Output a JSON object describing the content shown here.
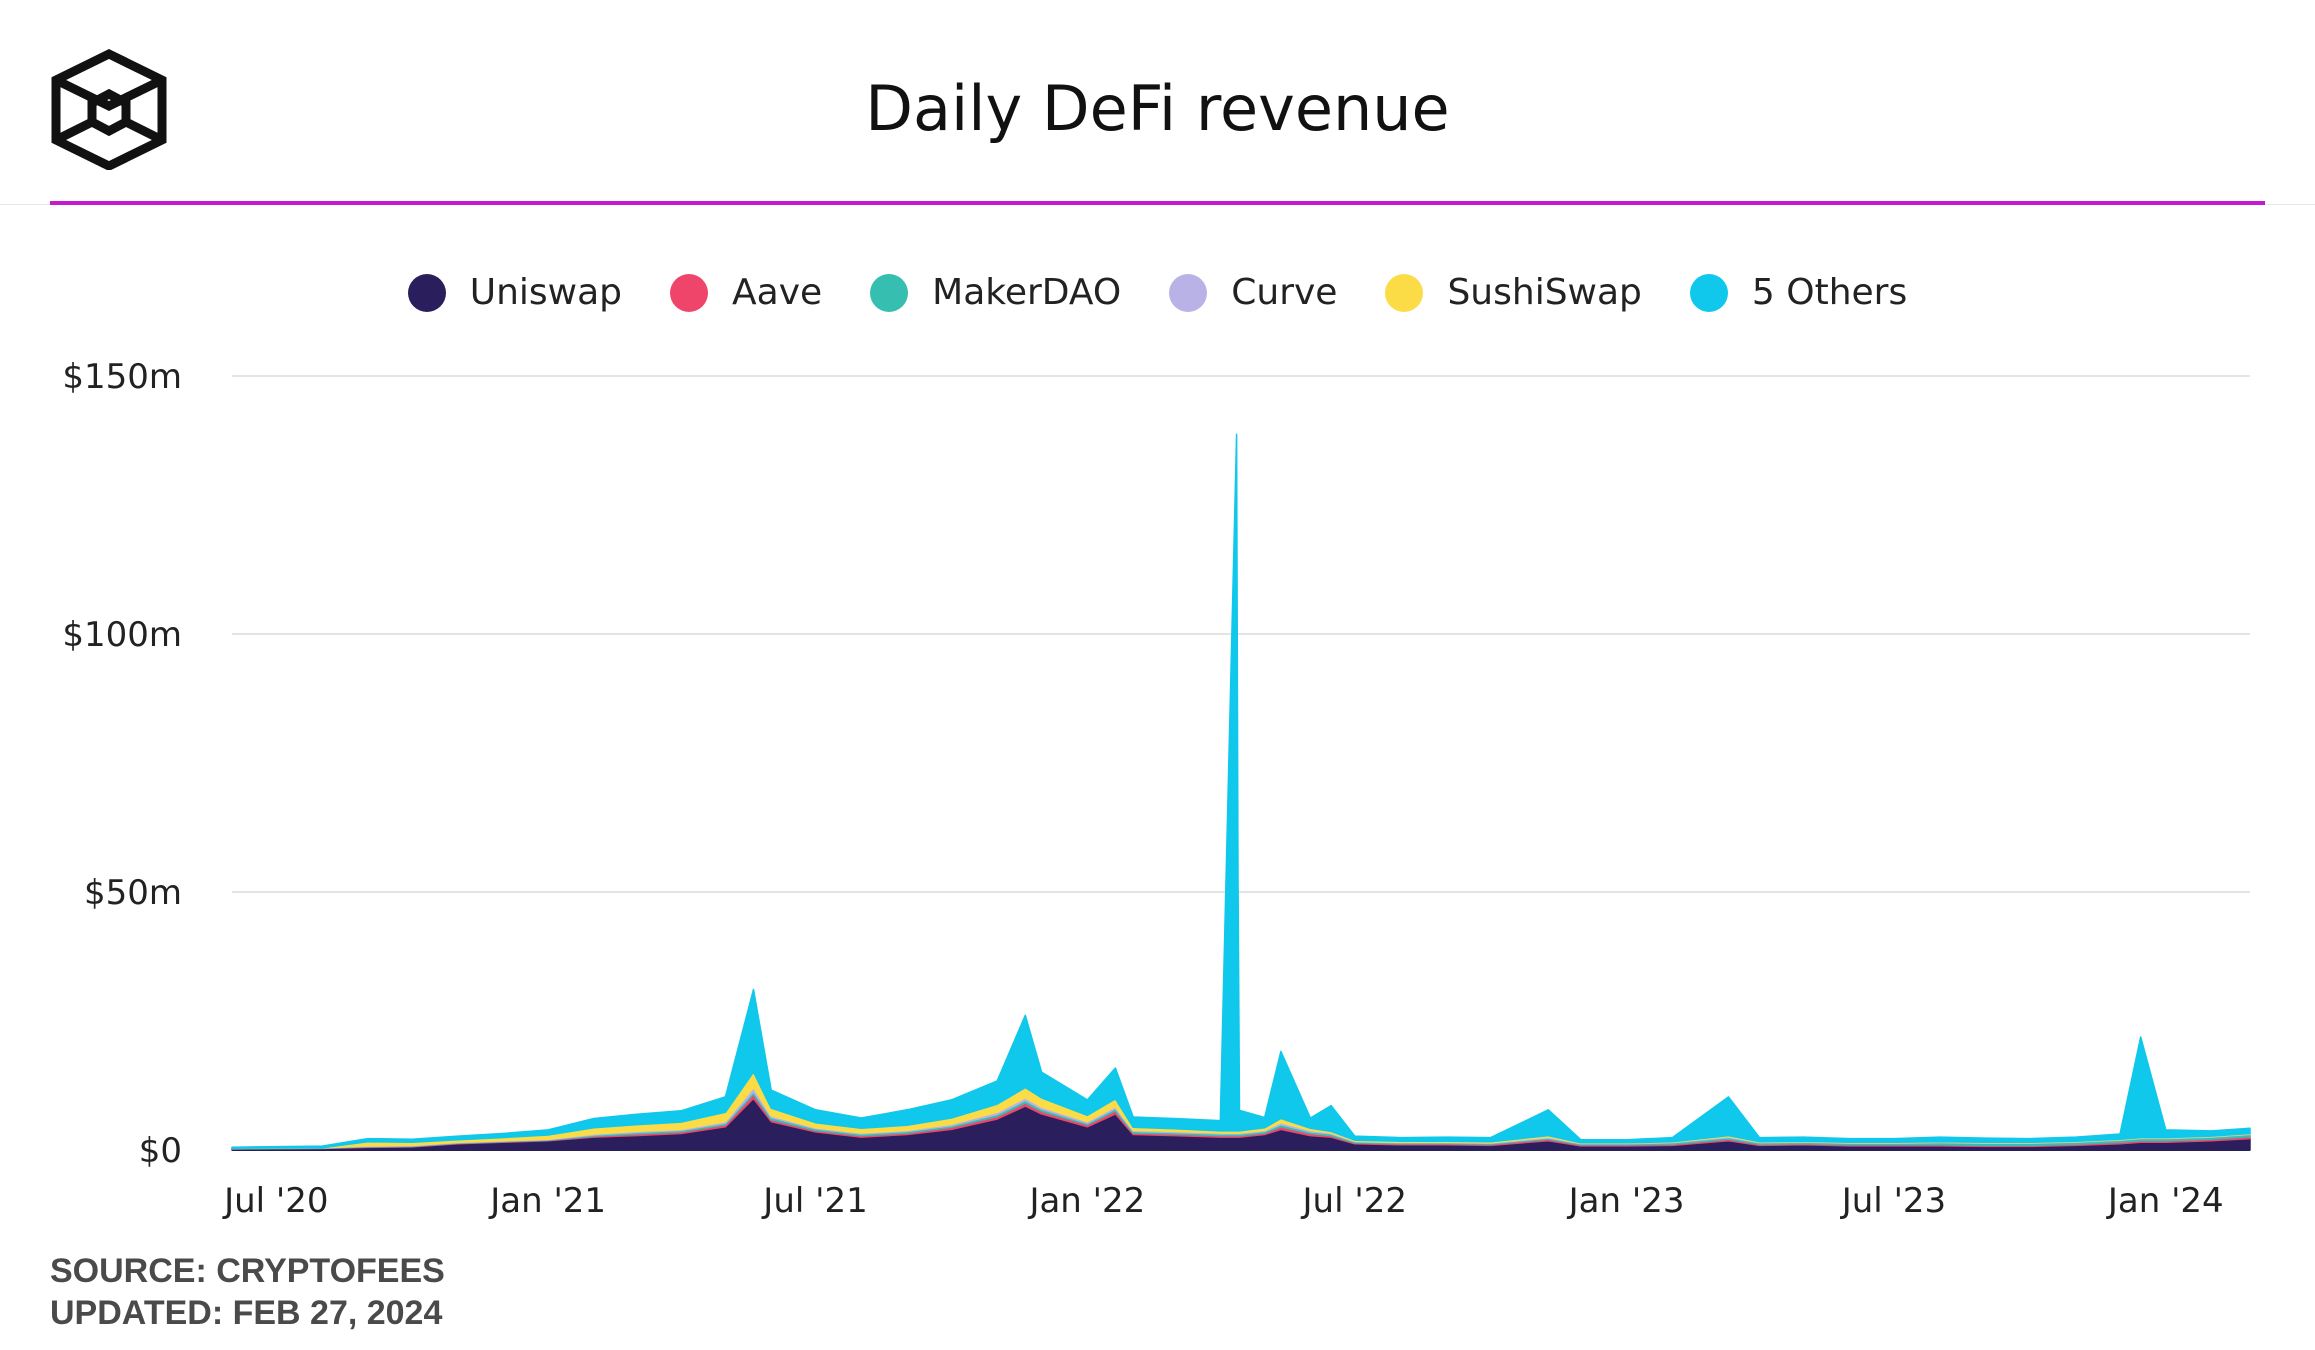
{
  "header": {
    "title": "Daily DeFi revenue",
    "logo_icon": "cube-logo-icon"
  },
  "legend": [
    {
      "label": "Uniswap",
      "color": "#2a1f5c"
    },
    {
      "label": "Aave",
      "color": "#f0456b"
    },
    {
      "label": "MakerDAO",
      "color": "#36bfb0"
    },
    {
      "label": "Curve",
      "color": "#b9b2e6"
    },
    {
      "label": "SushiSwap",
      "color": "#fbdc47"
    },
    {
      "label": "5 Others",
      "color": "#0fc8ec"
    }
  ],
  "footer": {
    "source": "SOURCE: CRYPTOFEES",
    "updated": "UPDATED: FEB 27, 2024"
  },
  "chart_data": {
    "type": "area",
    "stacked": true,
    "y_ticks": [
      "$0",
      "$50m",
      "$100m",
      "$150m"
    ],
    "y_tick_values": [
      0,
      50,
      100,
      150
    ],
    "ylim": [
      0,
      150
    ],
    "y_unit": "$m",
    "x_ticks": [
      "Jul '20",
      "Jan '21",
      "Jul '21",
      "Jan '22",
      "Jul '22",
      "Jan '23",
      "Jul '23",
      "Jan '24"
    ],
    "x_tick_dates": [
      "2020-07-01",
      "2021-01-01",
      "2021-07-01",
      "2022-01-01",
      "2022-07-01",
      "2023-01-01",
      "2023-07-01",
      "2024-01-01"
    ],
    "x_range": [
      "2020-06-01",
      "2024-02-27"
    ],
    "grid": true,
    "legend_position": "top",
    "x": [
      "2020-06-01",
      "2020-08-01",
      "2020-09-01",
      "2020-10-01",
      "2020-11-01",
      "2020-12-01",
      "2021-01-01",
      "2021-02-01",
      "2021-03-01",
      "2021-04-01",
      "2021-05-01",
      "2021-05-20",
      "2021-06-01",
      "2021-07-01",
      "2021-08-01",
      "2021-09-01",
      "2021-10-01",
      "2021-11-01",
      "2021-11-20",
      "2021-12-01",
      "2022-01-01",
      "2022-01-20",
      "2022-02-01",
      "2022-03-01",
      "2022-04-01",
      "2022-04-12",
      "2022-04-13",
      "2022-04-14",
      "2022-05-01",
      "2022-05-12",
      "2022-06-01",
      "2022-06-15",
      "2022-07-01",
      "2022-08-01",
      "2022-09-01",
      "2022-10-01",
      "2022-11-09",
      "2022-12-01",
      "2023-01-01",
      "2023-02-01",
      "2023-03-11",
      "2023-04-01",
      "2023-05-01",
      "2023-06-01",
      "2023-07-01",
      "2023-08-01",
      "2023-09-01",
      "2023-10-01",
      "2023-11-01",
      "2023-12-01",
      "2023-12-15",
      "2024-01-01",
      "2024-02-01",
      "2024-02-27"
    ],
    "series": [
      {
        "name": "Uniswap",
        "values": [
          0.2,
          0.3,
          0.5,
          0.6,
          1.2,
          1.5,
          1.8,
          2.5,
          2.8,
          3.2,
          4.5,
          10.0,
          5.5,
          3.5,
          2.5,
          3.0,
          4.0,
          6.0,
          8.5,
          7.0,
          4.5,
          7.0,
          3.0,
          2.8,
          2.5,
          2.5,
          2.5,
          2.5,
          3.0,
          4.0,
          2.8,
          2.5,
          1.2,
          1.0,
          1.0,
          0.9,
          1.8,
          0.8,
          0.8,
          0.9,
          1.8,
          0.9,
          1.0,
          0.8,
          0.8,
          0.8,
          0.7,
          0.7,
          0.9,
          1.2,
          1.5,
          1.5,
          1.8,
          2.2
        ]
      },
      {
        "name": "Aave",
        "values": [
          0.05,
          0.05,
          0.1,
          0.1,
          0.1,
          0.1,
          0.1,
          0.2,
          0.3,
          0.3,
          0.4,
          0.8,
          0.4,
          0.3,
          0.3,
          0.3,
          0.4,
          0.5,
          0.6,
          0.5,
          0.4,
          0.6,
          0.3,
          0.3,
          0.3,
          0.3,
          0.3,
          0.3,
          0.3,
          0.5,
          0.4,
          0.3,
          0.2,
          0.2,
          0.2,
          0.2,
          0.3,
          0.2,
          0.2,
          0.2,
          0.3,
          0.2,
          0.2,
          0.2,
          0.2,
          0.2,
          0.2,
          0.2,
          0.2,
          0.3,
          0.3,
          0.3,
          0.3,
          0.4
        ]
      },
      {
        "name": "MakerDAO",
        "values": [
          0.05,
          0.05,
          0.1,
          0.1,
          0.1,
          0.1,
          0.1,
          0.2,
          0.3,
          0.3,
          0.3,
          0.5,
          0.4,
          0.3,
          0.3,
          0.3,
          0.3,
          0.4,
          0.5,
          0.4,
          0.3,
          0.4,
          0.3,
          0.3,
          0.3,
          0.3,
          0.3,
          0.3,
          0.3,
          0.4,
          0.3,
          0.3,
          0.2,
          0.2,
          0.2,
          0.2,
          0.2,
          0.2,
          0.2,
          0.3,
          0.3,
          0.3,
          0.3,
          0.3,
          0.3,
          0.4,
          0.4,
          0.4,
          0.4,
          0.4,
          0.4,
          0.4,
          0.4,
          0.4
        ]
      },
      {
        "name": "Curve",
        "values": [
          0.05,
          0.05,
          0.1,
          0.1,
          0.1,
          0.1,
          0.1,
          0.2,
          0.2,
          0.2,
          0.3,
          0.8,
          0.3,
          0.2,
          0.2,
          0.2,
          0.3,
          0.4,
          0.5,
          0.4,
          0.3,
          0.4,
          0.2,
          0.2,
          0.2,
          0.2,
          0.2,
          0.2,
          0.2,
          0.4,
          0.3,
          0.2,
          0.1,
          0.1,
          0.1,
          0.1,
          0.2,
          0.1,
          0.1,
          0.1,
          0.2,
          0.1,
          0.1,
          0.1,
          0.1,
          0.1,
          0.1,
          0.1,
          0.1,
          0.1,
          0.1,
          0.1,
          0.1,
          0.1
        ]
      },
      {
        "name": "SushiSwap",
        "values": [
          0.0,
          0.0,
          0.8,
          0.6,
          0.5,
          0.6,
          0.8,
          1.2,
          1.3,
          1.4,
          1.8,
          3.0,
          1.5,
          1.0,
          0.9,
          1.0,
          1.2,
          1.6,
          2.0,
          1.8,
          1.2,
          1.5,
          0.6,
          0.5,
          0.4,
          0.4,
          0.4,
          0.4,
          0.5,
          0.8,
          0.4,
          0.3,
          0.2,
          0.2,
          0.2,
          0.2,
          0.3,
          0.1,
          0.1,
          0.1,
          0.2,
          0.1,
          0.1,
          0.1,
          0.1,
          0.1,
          0.1,
          0.1,
          0.1,
          0.1,
          0.1,
          0.1,
          0.1,
          0.1
        ]
      },
      {
        "name": "5 Others",
        "values": [
          0.2,
          0.3,
          0.6,
          0.6,
          0.7,
          0.8,
          1.0,
          1.8,
          2.0,
          2.2,
          3.0,
          16.0,
          3.5,
          2.5,
          2.0,
          3.0,
          3.5,
          4.5,
          14.0,
          5.0,
          3.0,
          6.0,
          2.0,
          2.0,
          2.0,
          135.0,
          50.0,
          4.0,
          2.0,
          13.0,
          2.0,
          5.0,
          0.8,
          0.7,
          0.8,
          0.8,
          5.0,
          0.6,
          0.6,
          0.8,
          7.5,
          0.8,
          0.8,
          0.7,
          0.7,
          0.9,
          0.8,
          0.7,
          0.8,
          1.0,
          19.5,
          1.5,
          1.0,
          1.0
        ]
      }
    ]
  }
}
